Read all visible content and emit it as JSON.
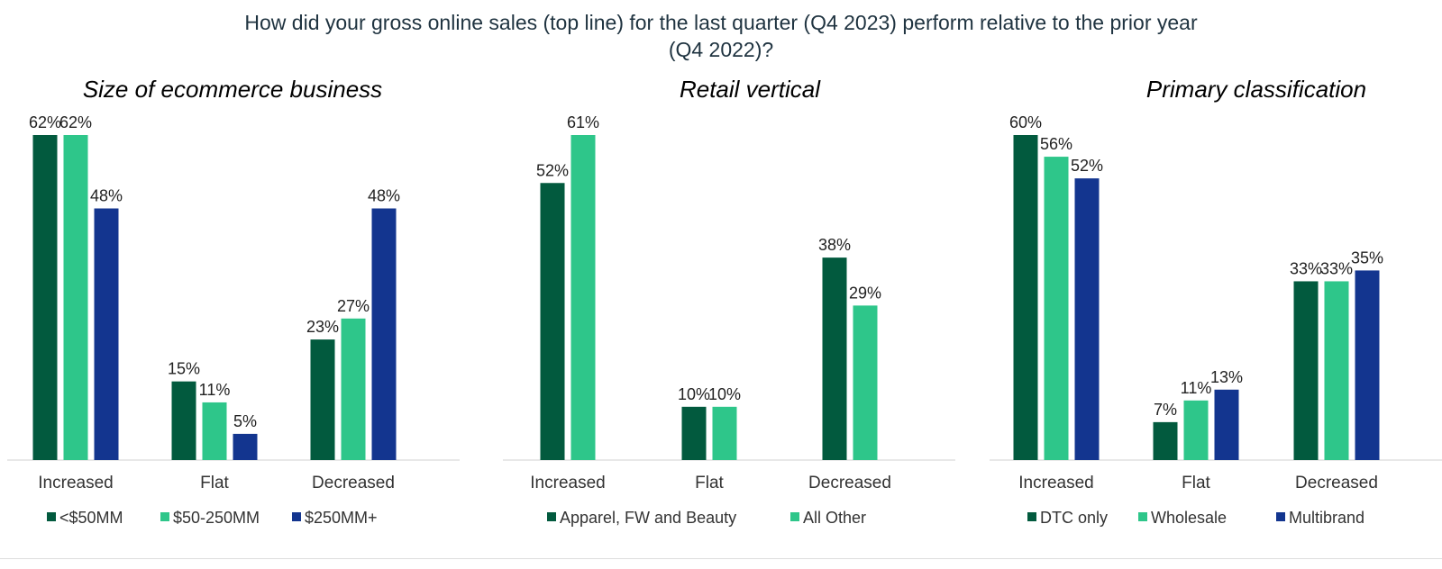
{
  "title": {
    "line1": "How did your gross online sales (top line) for the last quarter (Q4 2023) perform relative to the prior year",
    "line2": "(Q4 2022)?"
  },
  "colors": {
    "dark_green": "#025a3e",
    "light_green": "#2ec68a",
    "navy": "#13358f"
  },
  "chart_data": [
    {
      "type": "bar",
      "title": "Size of ecommerce business",
      "categories": [
        "Increased",
        "Flat",
        "Decreased"
      ],
      "series": [
        {
          "name": "<$50MM",
          "values": [
            62,
            15,
            23
          ],
          "color": "#025a3e"
        },
        {
          "name": "$50-250MM",
          "values": [
            62,
            11,
            27
          ],
          "color": "#2ec68a"
        },
        {
          "name": "$250MM+",
          "values": [
            48,
            5,
            48
          ],
          "color": "#13358f"
        }
      ],
      "value_suffix": "%",
      "ylim": [
        0,
        62
      ],
      "grid": false,
      "legend": "bottom"
    },
    {
      "type": "bar",
      "title": "Retail vertical",
      "categories": [
        "Increased",
        "Flat",
        "Decreased"
      ],
      "series": [
        {
          "name": "Apparel, FW and Beauty",
          "values": [
            52,
            10,
            38
          ],
          "color": "#025a3e"
        },
        {
          "name": "All Other",
          "values": [
            61,
            10,
            29
          ],
          "color": "#2ec68a"
        }
      ],
      "value_suffix": "%",
      "ylim": [
        0,
        61
      ],
      "grid": false,
      "legend": "bottom"
    },
    {
      "type": "bar",
      "title": "Primary classification",
      "categories": [
        "Increased",
        "Flat",
        "Decreased"
      ],
      "series": [
        {
          "name": "DTC only",
          "values": [
            60,
            7,
            33
          ],
          "color": "#025a3e"
        },
        {
          "name": "Wholesale",
          "values": [
            56,
            11,
            33
          ],
          "color": "#2ec68a"
        },
        {
          "name": "Multibrand",
          "values": [
            52,
            13,
            35
          ],
          "color": "#13358f"
        }
      ],
      "value_suffix": "%",
      "ylim": [
        0,
        60
      ],
      "grid": false,
      "legend": "bottom"
    }
  ]
}
